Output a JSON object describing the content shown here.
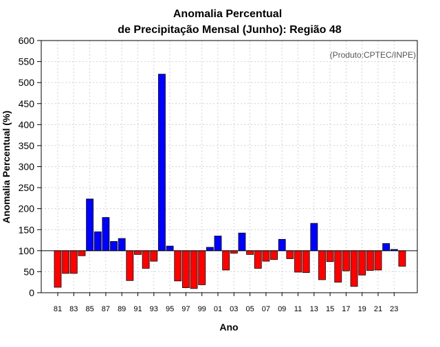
{
  "chart_data": {
    "type": "bar",
    "title_line1": "Anomalia Percentual",
    "title_line2": "de Precipitação Mensal (Junho): Região 48",
    "credit": "(Produto:CPTEC/INPE)",
    "xlabel": "Ano",
    "ylabel": "Anomalia Percentual (%)",
    "ylim": [
      0,
      600
    ],
    "yticks": [
      0,
      50,
      100,
      150,
      200,
      250,
      300,
      350,
      400,
      450,
      500,
      550,
      600
    ],
    "baseline": 100,
    "grid": true,
    "colors": {
      "above": "#0000ff",
      "below": "#ff0000",
      "edge": "#000000",
      "grid": "#d0d0d0"
    },
    "categories": [
      "81",
      "82",
      "83",
      "84",
      "85",
      "86",
      "87",
      "88",
      "89",
      "90",
      "91",
      "92",
      "93",
      "94",
      "95",
      "96",
      "97",
      "98",
      "99",
      "00",
      "01",
      "02",
      "03",
      "04",
      "05",
      "06",
      "07",
      "08",
      "09",
      "10",
      "11",
      "12",
      "13",
      "14",
      "15",
      "16",
      "17",
      "18",
      "19",
      "20",
      "21",
      "22",
      "23",
      "24"
    ],
    "tick_labels": [
      "81",
      "83",
      "85",
      "87",
      "89",
      "91",
      "93",
      "95",
      "97",
      "99",
      "01",
      "03",
      "05",
      "07",
      "09",
      "11",
      "13",
      "15",
      "17",
      "19",
      "21",
      "23"
    ],
    "values": [
      13,
      46,
      46,
      88,
      223,
      145,
      179,
      122,
      129,
      29,
      91,
      58,
      75,
      520,
      111,
      28,
      12,
      10,
      19,
      108,
      135,
      54,
      94,
      142,
      91,
      58,
      75,
      79,
      127,
      81,
      49,
      48,
      165,
      31,
      74,
      25,
      52,
      15,
      42,
      53,
      54,
      117,
      103,
      63
    ]
  }
}
